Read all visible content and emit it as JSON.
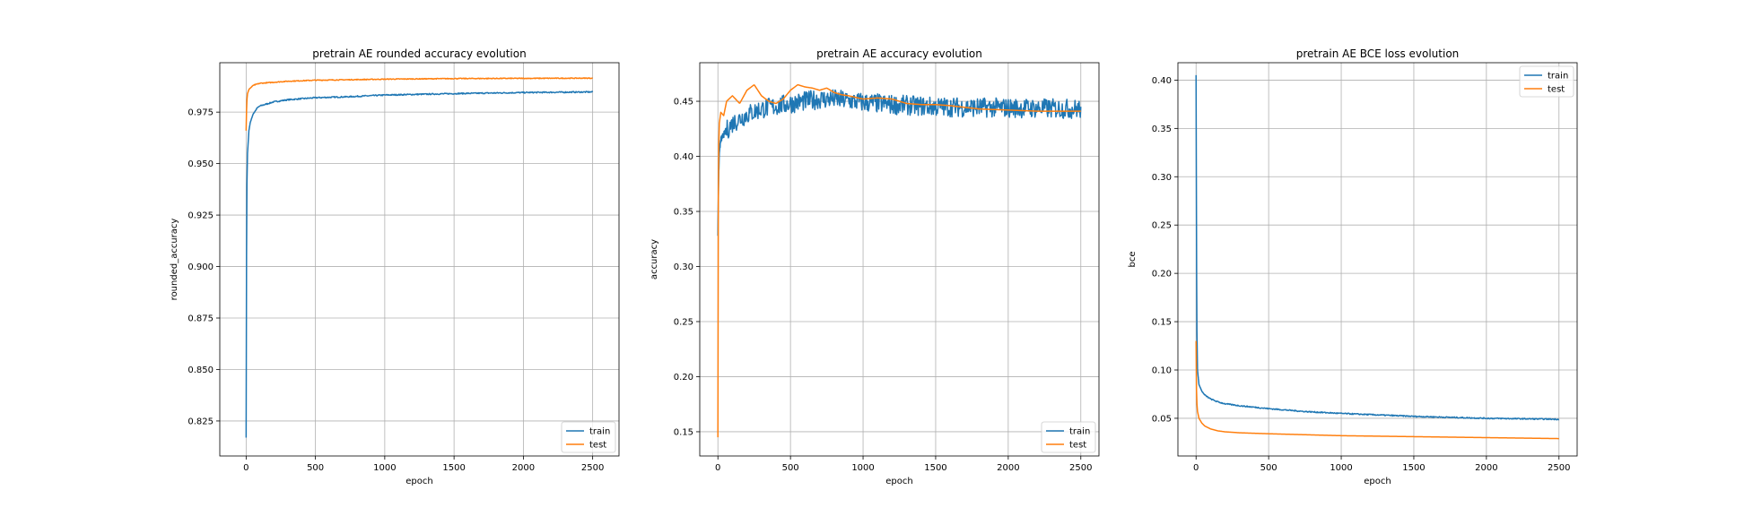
{
  "chart_data": [
    {
      "type": "line",
      "title": "pretrain AE rounded accuracy evolution",
      "xlabel": "epoch",
      "ylabel": "rounded_accuracy",
      "xlim": [
        -190,
        2690
      ],
      "ylim": [
        0.808,
        0.999
      ],
      "xticks": [
        0,
        500,
        1000,
        1500,
        2000,
        2500
      ],
      "yticks": [
        0.825,
        0.85,
        0.875,
        0.9,
        0.925,
        0.95,
        0.975
      ],
      "ytick_labels": [
        "0.825",
        "0.850",
        "0.875",
        "0.900",
        "0.925",
        "0.950",
        "0.975"
      ],
      "grid": true,
      "legend": "lower-right",
      "series": [
        {
          "name": "train",
          "color": "#1f77b4",
          "noise": 0.0003,
          "x": [
            0,
            3,
            6,
            10,
            20,
            30,
            50,
            80,
            100,
            150,
            200,
            300,
            400,
            500,
            750,
            1000,
            1500,
            2000,
            2500
          ],
          "y": [
            0.817,
            0.905,
            0.94,
            0.955,
            0.966,
            0.97,
            0.974,
            0.977,
            0.978,
            0.979,
            0.98,
            0.981,
            0.9815,
            0.982,
            0.9825,
            0.9833,
            0.984,
            0.9845,
            0.9848
          ]
        },
        {
          "name": "test",
          "color": "#ff7f0e",
          "noise": 0.0002,
          "x": [
            0,
            3,
            6,
            10,
            20,
            50,
            100,
            200,
            300,
            500,
            1000,
            1500,
            2000,
            2500
          ],
          "y": [
            0.966,
            0.976,
            0.981,
            0.984,
            0.986,
            0.988,
            0.989,
            0.9895,
            0.99,
            0.9905,
            0.991,
            0.9913,
            0.9914,
            0.9915
          ]
        }
      ]
    },
    {
      "type": "line",
      "title": "pretrain AE accuracy evolution",
      "xlabel": "epoch",
      "ylabel": "accuracy",
      "xlim": [
        -125,
        2625
      ],
      "ylim": [
        0.128,
        0.485
      ],
      "xticks": [
        0,
        500,
        1000,
        1500,
        2000,
        2500
      ],
      "yticks": [
        0.15,
        0.2,
        0.25,
        0.3,
        0.35,
        0.4,
        0.45
      ],
      "ytick_labels": [
        "0.15",
        "0.20",
        "0.25",
        "0.30",
        "0.35",
        "0.40",
        "0.45"
      ],
      "grid": true,
      "legend": "lower-right",
      "series": [
        {
          "name": "train",
          "color": "#1f77b4",
          "noise": 0.009,
          "x": [
            0,
            5,
            10,
            20,
            50,
            100,
            200,
            300,
            500,
            700,
            800,
            1000,
            1200,
            1500,
            2000,
            2500
          ],
          "y": [
            0.33,
            0.38,
            0.405,
            0.415,
            0.422,
            0.43,
            0.438,
            0.443,
            0.448,
            0.452,
            0.452,
            0.449,
            0.447,
            0.445,
            0.444,
            0.443
          ]
        },
        {
          "name": "test",
          "color": "#ff7f0e",
          "noise": 0.0,
          "x": [
            0,
            3,
            6,
            10,
            20,
            40,
            60,
            100,
            150,
            200,
            250,
            300,
            350,
            400,
            450,
            500,
            550,
            600,
            650,
            700,
            750,
            800,
            850,
            900,
            1000,
            1100,
            1200,
            1250,
            1300,
            1400,
            1500,
            1600,
            1800,
            2000,
            2200,
            2500
          ],
          "y": [
            0.145,
            0.36,
            0.41,
            0.43,
            0.44,
            0.437,
            0.45,
            0.455,
            0.448,
            0.46,
            0.465,
            0.455,
            0.45,
            0.448,
            0.452,
            0.46,
            0.465,
            0.463,
            0.462,
            0.46,
            0.462,
            0.458,
            0.456,
            0.455,
            0.452,
            0.453,
            0.452,
            0.45,
            0.448,
            0.447,
            0.447,
            0.446,
            0.443,
            0.442,
            0.441,
            0.441
          ]
        }
      ]
    },
    {
      "type": "line",
      "title": "pretrain AE BCE loss evolution",
      "xlabel": "epoch",
      "ylabel": "bce",
      "xlim": [
        -125,
        2625
      ],
      "ylim": [
        0.011,
        0.418
      ],
      "xticks": [
        0,
        500,
        1000,
        1500,
        2000,
        2500
      ],
      "yticks": [
        0.05,
        0.1,
        0.15,
        0.2,
        0.25,
        0.3,
        0.35,
        0.4
      ],
      "ytick_labels": [
        "0.05",
        "0.10",
        "0.15",
        "0.20",
        "0.25",
        "0.30",
        "0.35",
        "0.40"
      ],
      "grid": true,
      "legend": "top-right",
      "series": [
        {
          "name": "train",
          "color": "#1f77b4",
          "noise": 0.0006,
          "x": [
            0,
            2,
            4,
            6,
            10,
            20,
            40,
            60,
            100,
            150,
            200,
            300,
            500,
            750,
            1000,
            1500,
            2000,
            2500
          ],
          "y": [
            0.405,
            0.3,
            0.2,
            0.14,
            0.1,
            0.085,
            0.078,
            0.074,
            0.07,
            0.067,
            0.065,
            0.063,
            0.06,
            0.057,
            0.055,
            0.052,
            0.05,
            0.049
          ]
        },
        {
          "name": "test",
          "color": "#ff7f0e",
          "noise": 0.0,
          "x": [
            0,
            3,
            6,
            10,
            20,
            40,
            60,
            100,
            150,
            200,
            300,
            500,
            750,
            1000,
            1500,
            2000,
            2500
          ],
          "y": [
            0.13,
            0.08,
            0.065,
            0.057,
            0.05,
            0.045,
            0.042,
            0.039,
            0.037,
            0.036,
            0.035,
            0.034,
            0.033,
            0.032,
            0.031,
            0.03,
            0.029
          ]
        }
      ]
    }
  ]
}
